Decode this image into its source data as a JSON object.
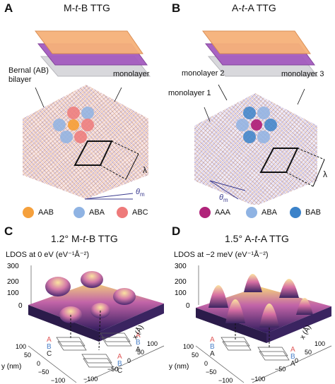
{
  "panels": {
    "A": {
      "letter": "A",
      "title_pre": "M-",
      "title_it": "t",
      "title_post": "-B TTG",
      "labels": {
        "bernal": "Bernal (AB)",
        "bilayer": "bilayer",
        "monolayer": "monolayer",
        "lambda": "λ",
        "theta": "θ",
        "theta_sub": "m"
      },
      "legend": [
        {
          "label": "AAB",
          "color": "#f5a03c"
        },
        {
          "label": "ABA",
          "color": "#8fb3e3"
        },
        {
          "label": "ABC",
          "color": "#ee7a7a"
        }
      ]
    },
    "B": {
      "letter": "B",
      "title_pre": "A-",
      "title_it": "t",
      "title_post": "-A TTG",
      "labels": {
        "monolayer1": "monolayer 1",
        "monolayer2": "monolayer 2",
        "monolayer3": "monolayer 3",
        "lambda": "λ",
        "theta": "θ",
        "theta_sub": "m"
      },
      "legend": [
        {
          "label": "AAA",
          "color": "#b0237a"
        },
        {
          "label": "ABA",
          "color": "#8fb3e3"
        },
        {
          "label": "BAB",
          "color": "#3b82c9"
        }
      ]
    },
    "C": {
      "letter": "C",
      "title_pre": "1.2° M-",
      "title_it": "t",
      "title_post": "-B TTG",
      "zlabel": "LDOS at 0 eV (eV⁻¹Å⁻²)",
      "zticks": [
        "300",
        "200",
        "100",
        "0"
      ],
      "ylabel": "y (nm)",
      "xlabel": "x (Å)",
      "yticks": [
        "100",
        "50",
        "0",
        "−50",
        "−100"
      ],
      "xticks": [
        "−100",
        "−50",
        "0",
        "50",
        "100"
      ],
      "stack1": [
        "A",
        "B",
        "C"
      ],
      "stack2": [
        "A",
        "B",
        "A"
      ],
      "stack3": [
        "A",
        "B",
        "C"
      ]
    },
    "D": {
      "letter": "D",
      "title_pre": "1.5° A-",
      "title_it": "t",
      "title_post": "-A TTG",
      "zlabel": "LDOS at −2 meV (eV⁻¹Å⁻²)",
      "zticks": [
        "300",
        "200",
        "100",
        "0"
      ],
      "ylabel": "y (nm)",
      "xlabel": "x (Å)",
      "yticks": [
        "100",
        "50",
        "0",
        "−50",
        "−100"
      ],
      "xticks": [
        "−100",
        "−50",
        "0",
        "50",
        "100"
      ],
      "stack1": [
        "A",
        "B",
        "A"
      ],
      "stack2": [
        "A",
        "B",
        "A"
      ]
    }
  },
  "colors": {
    "orange": "#f5a03c",
    "purple": "#9b4fb0",
    "gray": "#c9c9cc",
    "lightblue": "#8fb3e3",
    "red": "#ee7a7a",
    "magenta": "#b0237a",
    "blue": "#3b82c9"
  }
}
